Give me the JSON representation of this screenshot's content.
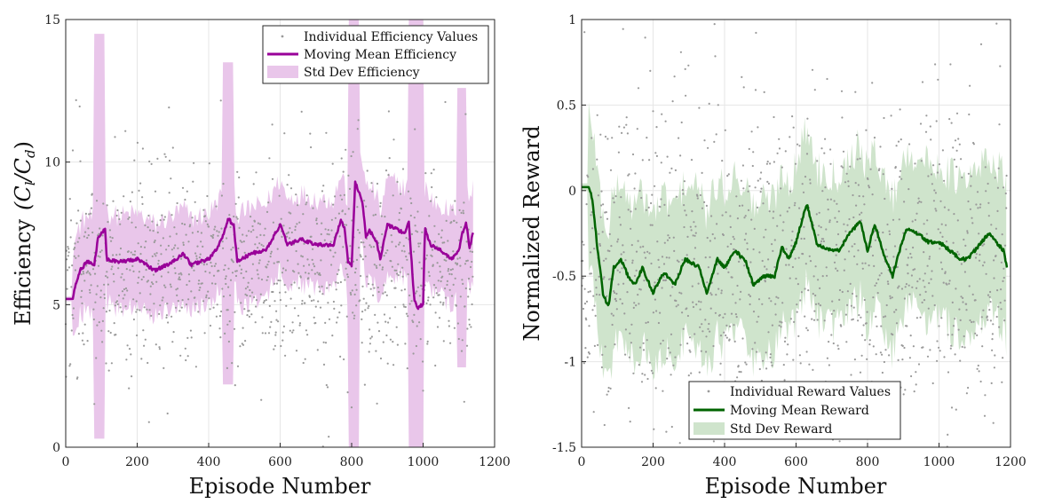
{
  "chart_data": [
    {
      "type": "scatter",
      "name": "efficiency",
      "xlabel": "Episode Number",
      "ylabel_prefix": "Efficiency",
      "ylabel_math": "(C",
      "ylabel_sub1": "l",
      "ylabel_mid": "/C",
      "ylabel_sub2": "d",
      "ylabel_end": ")",
      "xlim": [
        0,
        1200
      ],
      "ylim": [
        0,
        15
      ],
      "xticks": [
        "0",
        "200",
        "400",
        "600",
        "800",
        "1000",
        "1200"
      ],
      "xtick_values": [
        0,
        200,
        400,
        600,
        800,
        1000,
        1200
      ],
      "yticks": [
        "0",
        "5",
        "10",
        "15"
      ],
      "ytick_values": [
        0,
        5,
        10,
        15
      ],
      "grid": true,
      "legend_position": "top-right",
      "legend": [
        "Individual Efficiency Values",
        "Moving Mean Efficiency",
        "Std Dev Efficiency"
      ],
      "colors": {
        "points": "#9a9a9a",
        "mean": "#990099",
        "band": "#e9c6ea"
      },
      "episodes": [
        0,
        1140
      ],
      "mean_keypoints": [
        [
          0,
          5.2
        ],
        [
          20,
          5.2
        ],
        [
          25,
          5.6
        ],
        [
          40,
          6.2
        ],
        [
          60,
          6.5
        ],
        [
          80,
          6.4
        ],
        [
          90,
          7.3
        ],
        [
          100,
          7.5
        ],
        [
          110,
          7.7
        ],
        [
          115,
          6.6
        ],
        [
          150,
          6.5
        ],
        [
          200,
          6.6
        ],
        [
          250,
          6.2
        ],
        [
          300,
          6.5
        ],
        [
          330,
          6.8
        ],
        [
          350,
          6.4
        ],
        [
          400,
          6.6
        ],
        [
          420,
          6.9
        ],
        [
          440,
          7.4
        ],
        [
          455,
          8.0
        ],
        [
          470,
          7.8
        ],
        [
          480,
          6.5
        ],
        [
          520,
          6.8
        ],
        [
          560,
          6.9
        ],
        [
          600,
          7.8
        ],
        [
          620,
          7.1
        ],
        [
          660,
          7.3
        ],
        [
          700,
          7.1
        ],
        [
          750,
          7.1
        ],
        [
          770,
          8.0
        ],
        [
          780,
          7.7
        ],
        [
          790,
          6.5
        ],
        [
          800,
          6.4
        ],
        [
          810,
          9.3
        ],
        [
          830,
          8.6
        ],
        [
          840,
          7.4
        ],
        [
          850,
          7.6
        ],
        [
          870,
          7.2
        ],
        [
          880,
          6.6
        ],
        [
          900,
          7.8
        ],
        [
          950,
          7.5
        ],
        [
          960,
          7.9
        ],
        [
          975,
          5.2
        ],
        [
          985,
          4.9
        ],
        [
          1000,
          5.0
        ],
        [
          1005,
          7.7
        ],
        [
          1020,
          7.1
        ],
        [
          1050,
          6.9
        ],
        [
          1080,
          6.6
        ],
        [
          1100,
          6.9
        ],
        [
          1110,
          7.5
        ],
        [
          1120,
          7.9
        ],
        [
          1130,
          7.0
        ],
        [
          1140,
          7.5
        ]
      ],
      "band_half_width_base": 1.6,
      "band_spikes": [
        {
          "from": 80,
          "to": 110,
          "low": 0.3,
          "high": 14.5
        },
        {
          "from": 440,
          "to": 470,
          "low": 2.2,
          "high": 13.5
        },
        {
          "from": 790,
          "to": 820,
          "low": 0.0,
          "high": 15.0
        },
        {
          "from": 960,
          "to": 1000,
          "low": 0.0,
          "high": 15.0
        },
        {
          "from": 1095,
          "to": 1120,
          "low": 2.8,
          "high": 12.6
        }
      ],
      "points_center": 6.2,
      "points_spread": 1.6,
      "points_count": 1140
    },
    {
      "type": "scatter",
      "name": "reward",
      "xlabel": "Episode Number",
      "ylabel": "Normalized Reward",
      "xlim": [
        0,
        1200
      ],
      "ylim": [
        -1.5,
        1
      ],
      "xticks": [
        "0",
        "200",
        "400",
        "600",
        "800",
        "1000",
        "1200"
      ],
      "xtick_values": [
        0,
        200,
        400,
        600,
        800,
        1000,
        1200
      ],
      "yticks": [
        "-1.5",
        "-1",
        "-0.5",
        "0",
        "0.5",
        "1"
      ],
      "ytick_values": [
        -1.5,
        -1,
        -0.5,
        0,
        0.5,
        1
      ],
      "grid": true,
      "legend_position": "bottom-center",
      "legend": [
        "Individual Reward Values",
        "Moving Mean Reward",
        "Std Dev Reward"
      ],
      "colors": {
        "points": "#9a9a9a",
        "mean": "#006400",
        "band": "#cfe4cc"
      },
      "episodes": [
        0,
        1190
      ],
      "mean_keypoints": [
        [
          0,
          0.02
        ],
        [
          20,
          0.02
        ],
        [
          30,
          -0.05
        ],
        [
          45,
          -0.35
        ],
        [
          60,
          -0.6
        ],
        [
          75,
          -0.68
        ],
        [
          90,
          -0.45
        ],
        [
          110,
          -0.4
        ],
        [
          130,
          -0.5
        ],
        [
          150,
          -0.55
        ],
        [
          170,
          -0.45
        ],
        [
          200,
          -0.6
        ],
        [
          230,
          -0.48
        ],
        [
          260,
          -0.55
        ],
        [
          290,
          -0.4
        ],
        [
          330,
          -0.45
        ],
        [
          350,
          -0.6
        ],
        [
          380,
          -0.4
        ],
        [
          400,
          -0.45
        ],
        [
          430,
          -0.35
        ],
        [
          460,
          -0.42
        ],
        [
          480,
          -0.55
        ],
        [
          510,
          -0.5
        ],
        [
          540,
          -0.5
        ],
        [
          560,
          -0.33
        ],
        [
          580,
          -0.4
        ],
        [
          600,
          -0.3
        ],
        [
          620,
          -0.15
        ],
        [
          630,
          -0.08
        ],
        [
          660,
          -0.32
        ],
        [
          700,
          -0.35
        ],
        [
          720,
          -0.35
        ],
        [
          750,
          -0.25
        ],
        [
          780,
          -0.18
        ],
        [
          800,
          -0.35
        ],
        [
          820,
          -0.2
        ],
        [
          850,
          -0.4
        ],
        [
          870,
          -0.5
        ],
        [
          890,
          -0.35
        ],
        [
          910,
          -0.22
        ],
        [
          940,
          -0.25
        ],
        [
          970,
          -0.3
        ],
        [
          1000,
          -0.3
        ],
        [
          1030,
          -0.35
        ],
        [
          1060,
          -0.4
        ],
        [
          1080,
          -0.4
        ],
        [
          1100,
          -0.35
        ],
        [
          1140,
          -0.25
        ],
        [
          1160,
          -0.3
        ],
        [
          1180,
          -0.35
        ],
        [
          1190,
          -0.45
        ]
      ],
      "band_half_width_base": 0.45,
      "points_center": -0.45,
      "points_spread": 0.45,
      "points_count": 1190
    }
  ]
}
